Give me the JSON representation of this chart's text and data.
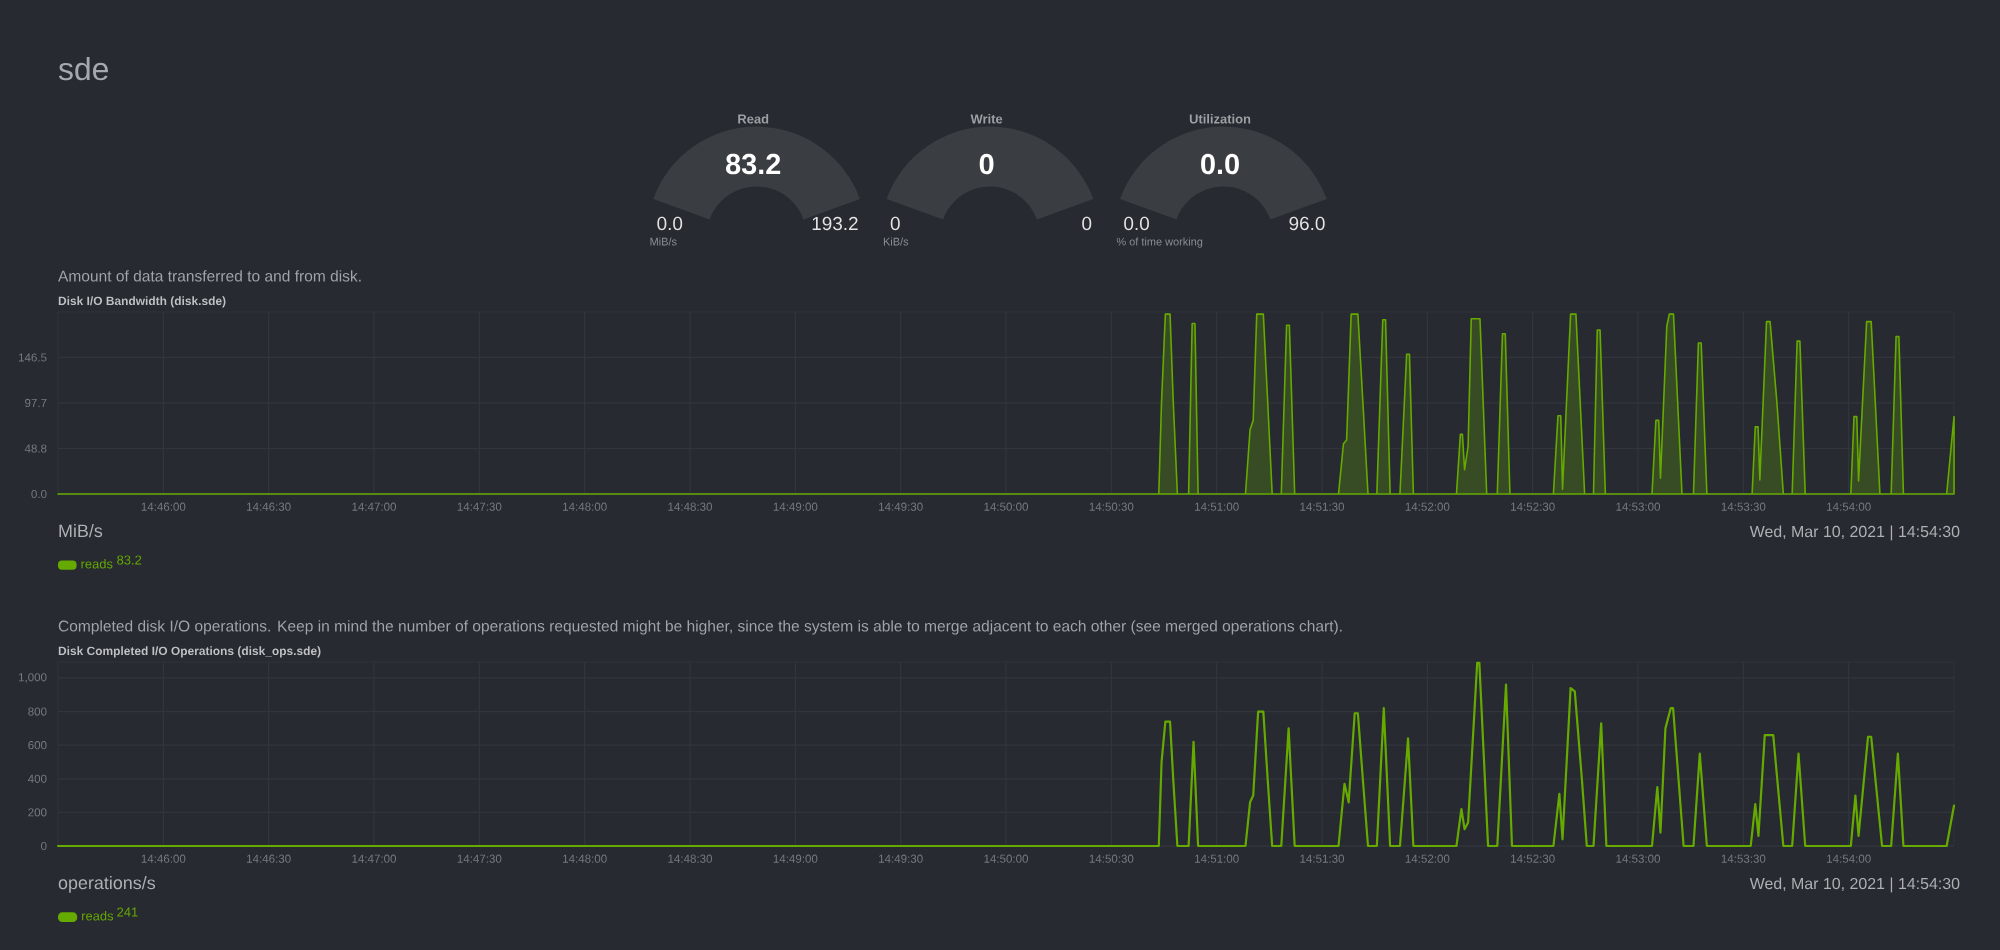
{
  "chart_data": [
    {
      "type": "other",
      "title": "sde"
    },
    {
      "type": "other",
      "title": "Read",
      "annotations": [
        "83.2",
        "0.0",
        "193.2",
        "MiB/s"
      ]
    },
    {
      "type": "other",
      "title": "Write",
      "annotations": [
        "0",
        "0",
        "0",
        "KiB/s"
      ]
    },
    {
      "type": "other",
      "title": "Utilization",
      "annotations": [
        "0.0",
        "0.0",
        "96.0",
        "% of time working"
      ]
    },
    {
      "type": "area",
      "subtitle": "Amount of data transferred to and from disk.",
      "title": "Disk I/O Bandwidth (disk.sde)",
      "annotations": [
        "MiB/s",
        "83.2",
        "Wed, Mar 10, 2021 | 14:54:30"
      ],
      "grid": true,
      "legend": "bottom left",
      "xlim": [
        14.758333,
        14.908333
      ],
      "xticks": [
        {
          "value": 14.766667,
          "label": "14:46:00"
        },
        {
          "value": 14.775,
          "label": "14:46:30"
        },
        {
          "value": 14.783333,
          "label": "14:47:00"
        },
        {
          "value": 14.791667,
          "label": "14:47:30"
        },
        {
          "value": 14.8,
          "label": "14:48:00"
        },
        {
          "value": 14.808333,
          "label": "14:48:30"
        },
        {
          "value": 14.816667,
          "label": "14:49:00"
        },
        {
          "value": 14.825,
          "label": "14:49:30"
        },
        {
          "value": 14.833333,
          "label": "14:50:00"
        },
        {
          "value": 14.841667,
          "label": "14:50:30"
        },
        {
          "value": 14.85,
          "label": "14:51:00"
        },
        {
          "value": 14.858333,
          "label": "14:51:30"
        },
        {
          "value": 14.866667,
          "label": "14:52:00"
        },
        {
          "value": 14.875,
          "label": "14:52:30"
        },
        {
          "value": 14.883333,
          "label": "14:53:00"
        },
        {
          "value": 14.891667,
          "label": "14:53:30"
        },
        {
          "value": 14.9,
          "label": "14:54:00"
        }
      ],
      "ylim": [
        0,
        195.3
      ],
      "yticks": [
        {
          "value": 0,
          "label": "0.0"
        },
        48.8,
        97.7,
        146.5
      ],
      "series": [
        {
          "name": "reads",
          "color": "#66aa00",
          "x": [
            14.758333,
            14.84542,
            14.84564,
            14.84594,
            14.84631,
            14.84656,
            14.84689,
            14.84778,
            14.84806,
            14.84828,
            14.84853,
            14.85228,
            14.85264,
            14.85289,
            14.85317,
            14.85369,
            14.85403,
            14.85439,
            14.85511,
            14.85553,
            14.85575,
            14.85617,
            14.85964,
            14.86003,
            14.86028,
            14.86064,
            14.86117,
            14.86156,
            14.86197,
            14.86267,
            14.86314,
            14.86336,
            14.86372,
            14.8645,
            14.86503,
            14.86525,
            14.86556,
            14.86897,
            14.86928,
            14.86944,
            14.86961,
            14.86989,
            14.87014,
            14.87083,
            14.87136,
            14.8722,
            14.87261,
            14.87283,
            14.8732,
            14.87664,
            14.877,
            14.87722,
            14.87736,
            14.878,
            14.87842,
            14.87911,
            14.87981,
            14.88011,
            14.88033,
            14.88075,
            14.88444,
            14.88475,
            14.88497,
            14.88511,
            14.88561,
            14.88581,
            14.88614,
            14.88681,
            14.88772,
            14.88811,
            14.88833,
            14.88878,
            14.89236,
            14.89261,
            14.89283,
            14.89297,
            14.8935,
            14.89378,
            14.89431,
            14.89483,
            14.89553,
            14.89592,
            14.89614,
            14.89656,
            14.90017,
            14.90042,
            14.90064,
            14.90078,
            14.90142,
            14.90178,
            14.90247,
            14.90336,
            14.90375,
            14.90397,
            14.90433,
            14.90775,
            14.908333
          ],
          "values": [
            0,
            0,
            100,
            193,
            193,
            100,
            0,
            0,
            183,
            183,
            0,
            0,
            69,
            79,
            193,
            193,
            100,
            0,
            0,
            181,
            181,
            0,
            0,
            54,
            58,
            193,
            193,
            100,
            0,
            0,
            187,
            187,
            0,
            0,
            150,
            150,
            0,
            0,
            64,
            64,
            26,
            51,
            188,
            188,
            0,
            0,
            172,
            172,
            0,
            0,
            84,
            84,
            5,
            193,
            193,
            0,
            0,
            176,
            176,
            0,
            0,
            79,
            79,
            17,
            180,
            193,
            193,
            0,
            0,
            162,
            162,
            0,
            0,
            72,
            72,
            15,
            185,
            185,
            100,
            0,
            0,
            164,
            164,
            0,
            0,
            83,
            83,
            14,
            185,
            185,
            0,
            0,
            169,
            169,
            0,
            0,
            83.2
          ]
        }
      ]
    },
    {
      "type": "line",
      "subtitle": "Completed disk I/O operations. Keep in mind the number of operations requested might be higher, since the system is able to merge adjacent to each other (see merged operations chart).",
      "title": "Disk Completed I/O Operations (disk_ops.sde)",
      "annotations": [
        "operations/s",
        "241",
        "Wed, Mar 10, 2021 | 14:54:30"
      ],
      "grid": true,
      "legend": "bottom left",
      "xlim": [
        14.758333,
        14.908333
      ],
      "xticks": [
        {
          "value": 14.766667,
          "label": "14:46:00"
        },
        {
          "value": 14.775,
          "label": "14:46:30"
        },
        {
          "value": 14.783333,
          "label": "14:47:00"
        },
        {
          "value": 14.791667,
          "label": "14:47:30"
        },
        {
          "value": 14.8,
          "label": "14:48:00"
        },
        {
          "value": 14.808333,
          "label": "14:48:30"
        },
        {
          "value": 14.816667,
          "label": "14:49:00"
        },
        {
          "value": 14.825,
          "label": "14:49:30"
        },
        {
          "value": 14.833333,
          "label": "14:50:00"
        },
        {
          "value": 14.841667,
          "label": "14:50:30"
        },
        {
          "value": 14.85,
          "label": "14:51:00"
        },
        {
          "value": 14.858333,
          "label": "14:51:30"
        },
        {
          "value": 14.866667,
          "label": "14:52:00"
        },
        {
          "value": 14.875,
          "label": "14:52:30"
        },
        {
          "value": 14.883333,
          "label": "14:53:00"
        },
        {
          "value": 14.891667,
          "label": "14:53:30"
        },
        {
          "value": 14.9,
          "label": "14:54:00"
        }
      ],
      "ylim": [
        0,
        1095
      ],
      "yticks": [
        0,
        200,
        400,
        600,
        800,
        {
          "value": 1000,
          "label": "1,000"
        }
      ],
      "series": [
        {
          "name": "reads",
          "color": "#66aa00",
          "x": [
            14.758333,
            14.84542,
            14.84564,
            14.84594,
            14.84631,
            14.84656,
            14.84689,
            14.84778,
            14.84817,
            14.84853,
            14.85228,
            14.85264,
            14.85289,
            14.85328,
            14.85369,
            14.85403,
            14.85439,
            14.85511,
            14.85569,
            14.85617,
            14.85964,
            14.86011,
            14.86044,
            14.86092,
            14.86117,
            14.86156,
            14.86197,
            14.86267,
            14.86322,
            14.86372,
            14.8645,
            14.86514,
            14.86556,
            14.86897,
            14.86936,
            14.86961,
            14.86989,
            14.87061,
            14.87078,
            14.87147,
            14.8722,
            14.87289,
            14.87336,
            14.87664,
            14.87711,
            14.87736,
            14.878,
            14.87833,
            14.87889,
            14.87928,
            14.87981,
            14.88042,
            14.88083,
            14.88444,
            14.88486,
            14.88511,
            14.8855,
            14.88592,
            14.88611,
            14.88694,
            14.88772,
            14.88822,
            14.88878,
            14.89225,
            14.89261,
            14.89286,
            14.89336,
            14.89403,
            14.89483,
            14.89553,
            14.89603,
            14.89656,
            14.90017,
            14.90053,
            14.90078,
            14.90153,
            14.90178,
            14.90264,
            14.90336,
            14.90389,
            14.90433,
            14.90775,
            14.908333
          ],
          "values": [
            0,
            0,
            500,
            740,
            740,
            400,
            0,
            0,
            620,
            0,
            0,
            260,
            300,
            800,
            800,
            400,
            0,
            0,
            700,
            0,
            0,
            370,
            260,
            790,
            790,
            400,
            0,
            0,
            820,
            0,
            0,
            640,
            0,
            0,
            220,
            100,
            140,
            1090,
            1090,
            0,
            0,
            960,
            0,
            0,
            310,
            40,
            940,
            920,
            400,
            0,
            0,
            730,
            0,
            0,
            350,
            80,
            700,
            820,
            820,
            0,
            0,
            550,
            0,
            0,
            250,
            60,
            660,
            660,
            0,
            0,
            550,
            0,
            0,
            300,
            60,
            650,
            650,
            0,
            0,
            550,
            0,
            0,
            241
          ]
        }
      ]
    }
  ]
}
